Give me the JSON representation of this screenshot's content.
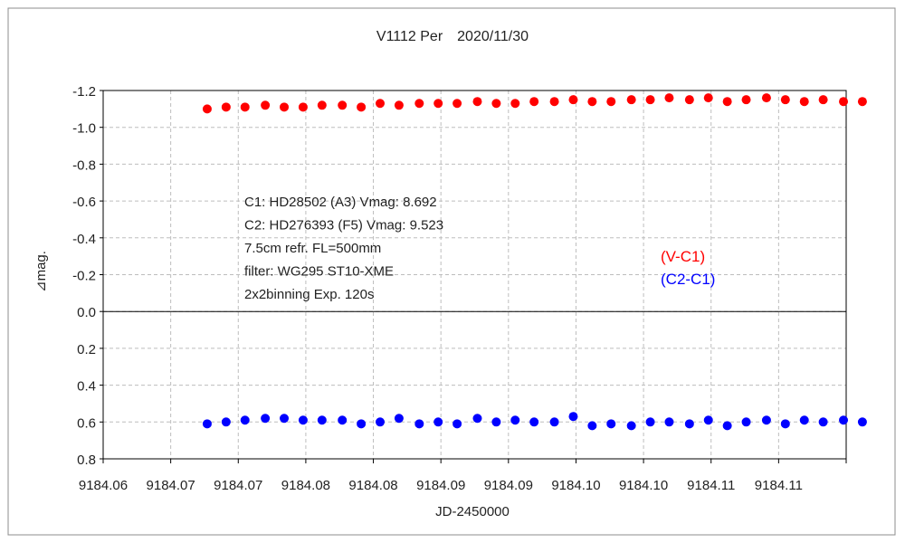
{
  "chart_data": {
    "type": "scatter",
    "title": "V1112 Per　2020/11/30",
    "xlabel": "JD-2450000",
    "ylabel": "⊿mag.",
    "xlim": [
      9184.06,
      9184.115
    ],
    "ylim": [
      -1.2,
      0.8
    ],
    "y_inverted": true,
    "x_tick_labels": [
      "9184.06",
      "9184.07",
      "9184.07",
      "9184.08",
      "9184.08",
      "9184.09",
      "9184.09",
      "9184.10",
      "9184.10",
      "9184.11",
      "9184.11"
    ],
    "y_ticks": [
      -1.2,
      -1.0,
      -0.8,
      -0.6,
      -0.4,
      -0.2,
      0.0,
      0.2,
      0.4,
      0.6,
      0.8
    ],
    "y_tick_labels": [
      "-1.2",
      "-1.0",
      "-0.8",
      "-0.6",
      "-0.4",
      "-0.2",
      "0.0",
      "0.2",
      "0.4",
      "0.6",
      "0.8"
    ],
    "grid": true,
    "zero_line": true,
    "legend_placement": "right-middle",
    "annotations": [
      "C1: HD28502 (A3) Vmag: 8.692",
      "C2: HD276393 (F5) Vmag: 9.523",
      "7.5cm refr. FL=500mm",
      "filter: WG295  ST10-XME",
      "2x2binning  Exp. 120s"
    ],
    "series": [
      {
        "name": "(V-C1)",
        "color": "#ff0000",
        "x": [
          9184.0677,
          9184.0691,
          9184.0705,
          9184.072,
          9184.0734,
          9184.0748,
          9184.0762,
          9184.0777,
          9184.0791,
          9184.0805,
          9184.0819,
          9184.0834,
          9184.0848,
          9184.0862,
          9184.0877,
          9184.0891,
          9184.0905,
          9184.0919,
          9184.0934,
          9184.0948,
          9184.0962,
          9184.0976,
          9184.0991,
          9184.1005,
          9184.1019,
          9184.1034,
          9184.1048,
          9184.1062,
          9184.1076,
          9184.1091,
          9184.1105,
          9184.1119,
          9184.1133,
          9184.1148,
          9184.1162
        ],
        "y": [
          -1.1,
          -1.11,
          -1.11,
          -1.12,
          -1.11,
          -1.11,
          -1.12,
          -1.12,
          -1.11,
          -1.13,
          -1.12,
          -1.13,
          -1.13,
          -1.13,
          -1.14,
          -1.13,
          -1.13,
          -1.14,
          -1.14,
          -1.15,
          -1.14,
          -1.14,
          -1.15,
          -1.15,
          -1.16,
          -1.15,
          -1.16,
          -1.14,
          -1.15,
          -1.16,
          -1.15,
          -1.14,
          -1.15,
          -1.14,
          -1.14
        ]
      },
      {
        "name": "(C2-C1)",
        "color": "#0000ff",
        "x": [
          9184.0677,
          9184.0691,
          9184.0705,
          9184.072,
          9184.0734,
          9184.0748,
          9184.0762,
          9184.0777,
          9184.0791,
          9184.0805,
          9184.0819,
          9184.0834,
          9184.0848,
          9184.0862,
          9184.0877,
          9184.0891,
          9184.0905,
          9184.0919,
          9184.0934,
          9184.0948,
          9184.0962,
          9184.0976,
          9184.0991,
          9184.1005,
          9184.1019,
          9184.1034,
          9184.1048,
          9184.1062,
          9184.1076,
          9184.1091,
          9184.1105,
          9184.1119,
          9184.1133,
          9184.1148,
          9184.1162
        ],
        "y": [
          0.61,
          0.6,
          0.59,
          0.58,
          0.58,
          0.59,
          0.59,
          0.59,
          0.61,
          0.6,
          0.58,
          0.61,
          0.6,
          0.61,
          0.58,
          0.6,
          0.59,
          0.6,
          0.6,
          0.57,
          0.62,
          0.61,
          0.62,
          0.6,
          0.6,
          0.61,
          0.59,
          0.62,
          0.6,
          0.59,
          0.61,
          0.59,
          0.6,
          0.59,
          0.6
        ]
      }
    ]
  }
}
